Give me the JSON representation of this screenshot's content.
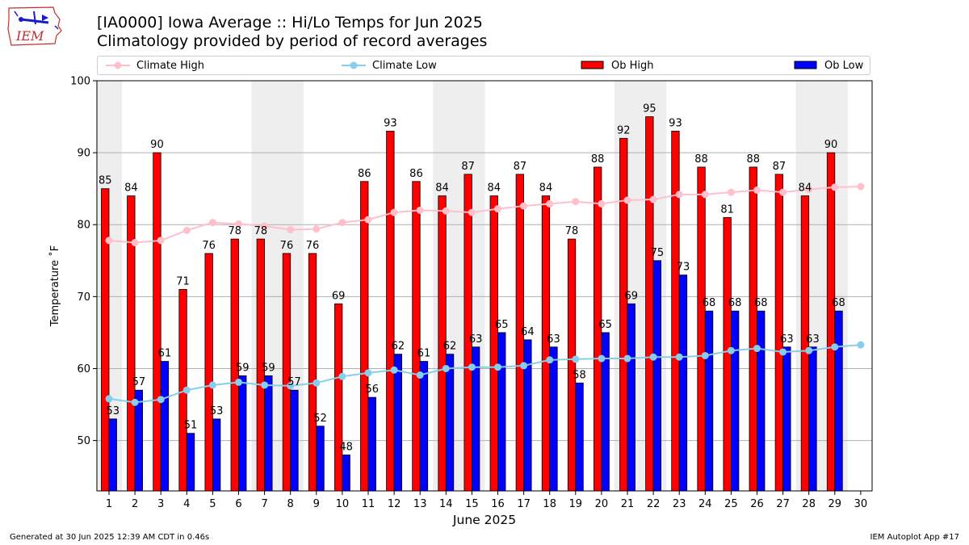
{
  "logo_text": "IEM",
  "title": "[IA0000] Iowa Average :: Hi/Lo Temps for Jun 2025",
  "subtitle": "Climatology provided by period of record averages",
  "footer_left": "Generated at 30 Jun 2025 12:39 AM CDT in 0.46s",
  "footer_right": "IEM Autoplot App #17",
  "colors": {
    "ob_high": "#ff0000",
    "ob_low": "#0000ff",
    "climate_high": "#ffc0cb",
    "climate_low": "#87ceeb",
    "weekend_shade": "#eeeeee",
    "grid": "#b0b0b0"
  },
  "chart_data": {
    "type": "bar",
    "xlabel": "June 2025",
    "ylabel": "Temperature ˚F",
    "ylim": [
      43,
      100
    ],
    "yticks": [
      50,
      60,
      70,
      80,
      90,
      100
    ],
    "grid": "horizontal",
    "legend_position": "top",
    "categories": [
      "1",
      "2",
      "3",
      "4",
      "5",
      "6",
      "7",
      "8",
      "9",
      "10",
      "11",
      "12",
      "13",
      "14",
      "15",
      "16",
      "17",
      "18",
      "19",
      "20",
      "21",
      "22",
      "23",
      "24",
      "25",
      "26",
      "27",
      "28",
      "29",
      "30"
    ],
    "shaded_days": [
      1,
      7,
      8,
      14,
      15,
      21,
      22,
      28,
      29
    ],
    "series": [
      {
        "name": "Ob High",
        "kind": "bar",
        "values": [
          85,
          84,
          90,
          71,
          76,
          78,
          78,
          76,
          76,
          69,
          86,
          93,
          86,
          84,
          87,
          84,
          87,
          84,
          78,
          88,
          92,
          95,
          93,
          88,
          81,
          88,
          87,
          84,
          90,
          null
        ]
      },
      {
        "name": "Ob Low",
        "kind": "bar",
        "values": [
          53,
          57,
          61,
          51,
          53,
          59,
          59,
          57,
          52,
          48,
          56,
          62,
          61,
          62,
          63,
          65,
          64,
          63,
          58,
          65,
          69,
          75,
          73,
          68,
          68,
          68,
          63,
          63,
          68,
          null
        ]
      },
      {
        "name": "Climate High",
        "kind": "line",
        "values": [
          77.8,
          77.5,
          77.8,
          79.2,
          80.3,
          80.1,
          79.8,
          79.3,
          79.4,
          80.3,
          80.7,
          81.7,
          82.0,
          81.9,
          81.7,
          82.2,
          82.6,
          82.9,
          83.2,
          82.9,
          83.4,
          83.5,
          84.2,
          84.2,
          84.5,
          84.8,
          84.5,
          84.9,
          85.2,
          85.3
        ]
      },
      {
        "name": "Climate Low",
        "kind": "line",
        "values": [
          55.8,
          55.3,
          55.7,
          57.0,
          57.7,
          58.1,
          57.7,
          57.6,
          58.0,
          58.9,
          59.4,
          59.8,
          59.1,
          60.0,
          60.2,
          60.2,
          60.4,
          61.2,
          61.3,
          61.4,
          61.4,
          61.6,
          61.6,
          61.8,
          62.5,
          62.8,
          62.3,
          62.5,
          63.0,
          63.3
        ]
      }
    ]
  }
}
